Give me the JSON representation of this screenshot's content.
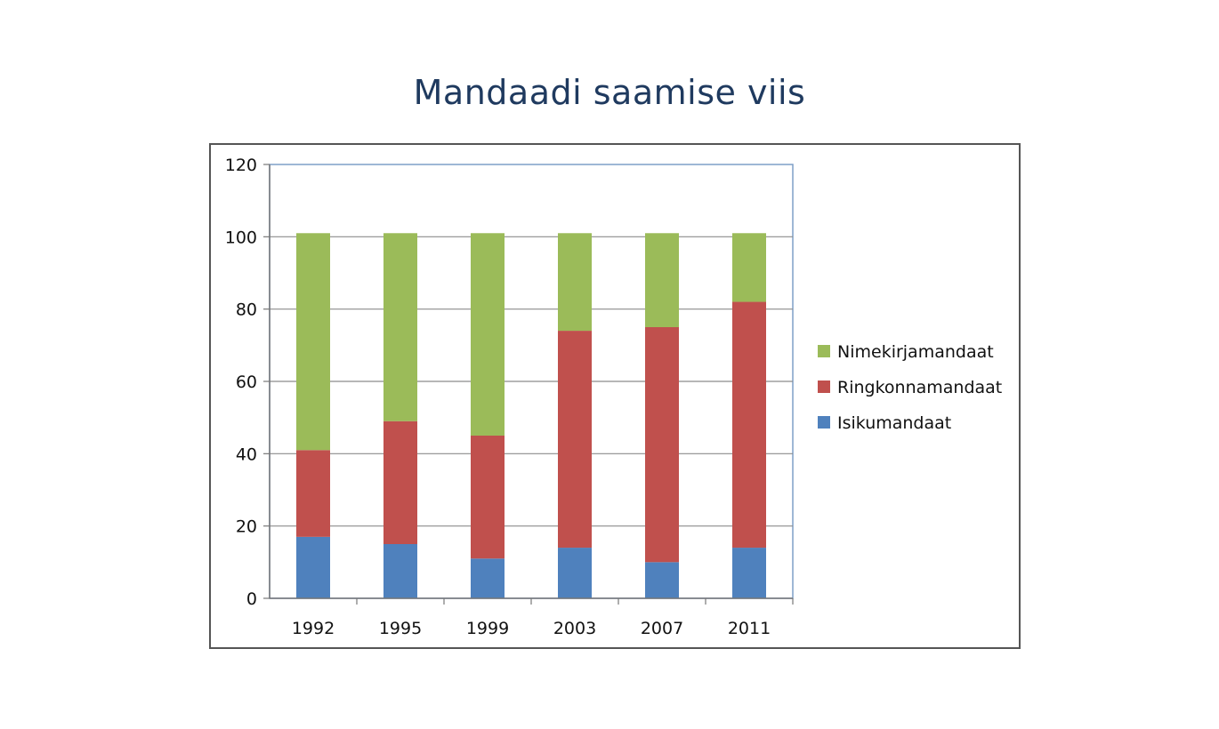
{
  "chart_data": {
    "type": "bar",
    "stacked": true,
    "title": "Mandaadi saamise viis",
    "categories": [
      "1992",
      "1995",
      "1999",
      "2003",
      "2007",
      "2011"
    ],
    "series": [
      {
        "name": "Isikumandaat",
        "color": "#4f81bd",
        "values": [
          17,
          15,
          11,
          14,
          10,
          14
        ]
      },
      {
        "name": "Ringkonnamandaat",
        "color": "#c0504d",
        "values": [
          24,
          34,
          34,
          60,
          65,
          68
        ]
      },
      {
        "name": "Nimekirjamandaat",
        "color": "#9bbb59",
        "values": [
          60,
          52,
          56,
          27,
          26,
          19
        ]
      }
    ],
    "ylim": [
      0,
      120
    ],
    "yticks": [
      0,
      20,
      40,
      60,
      80,
      100,
      120
    ],
    "grid": true,
    "legend_position": "right",
    "legend_order": [
      "Nimekirjamandaat",
      "Ringkonnamandaat",
      "Isikumandaat"
    ]
  }
}
